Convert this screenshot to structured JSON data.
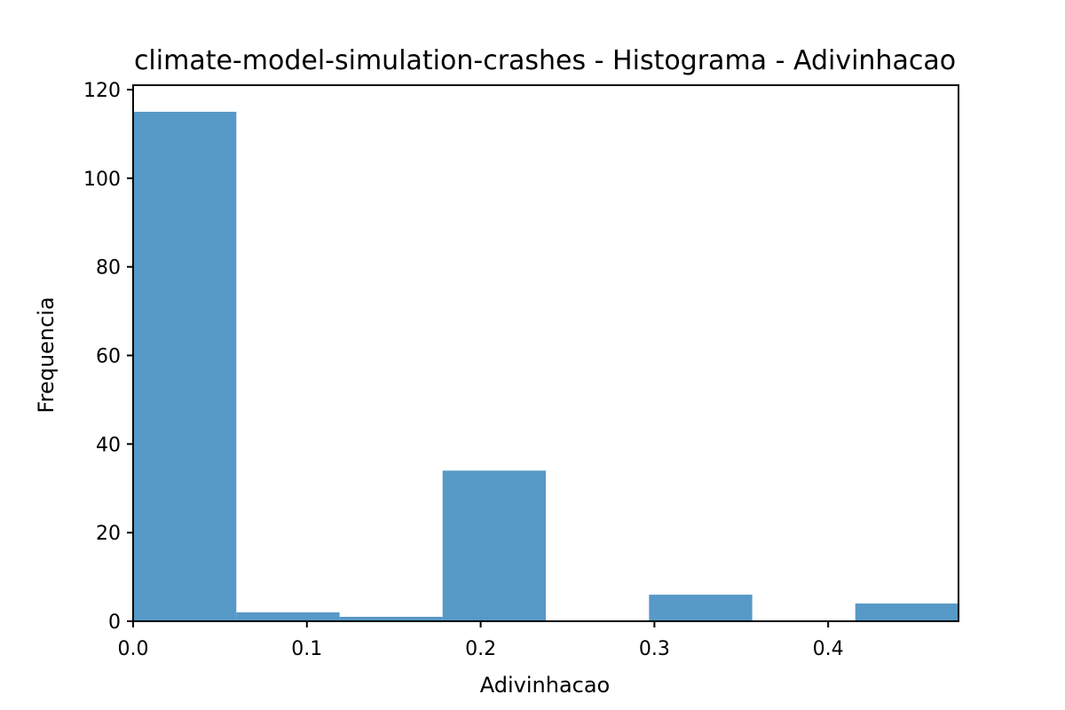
{
  "chart_data": {
    "type": "bar",
    "title": "climate-model-simulation-crashes - Histograma - Adivinhacao",
    "xlabel": "Adivinhacao",
    "ylabel": "Frequencia",
    "bar_color": "#5799c7",
    "xlim": [
      0.0,
      0.475
    ],
    "ylim": [
      0,
      121
    ],
    "x_ticks": [
      0.0,
      0.1,
      0.2,
      0.3,
      0.4
    ],
    "x_tick_labels": [
      "0.0",
      "0.1",
      "0.2",
      "0.3",
      "0.4"
    ],
    "y_ticks": [
      0,
      20,
      40,
      60,
      80,
      100,
      120
    ],
    "y_tick_labels": [
      "0",
      "20",
      "40",
      "60",
      "80",
      "100",
      "120"
    ],
    "bins": [
      {
        "x0": 0.0,
        "x1": 0.0594,
        "count": 115
      },
      {
        "x0": 0.0594,
        "x1": 0.1188,
        "count": 2
      },
      {
        "x0": 0.1188,
        "x1": 0.1781,
        "count": 1
      },
      {
        "x0": 0.1781,
        "x1": 0.2375,
        "count": 34
      },
      {
        "x0": 0.2375,
        "x1": 0.2969,
        "count": 0
      },
      {
        "x0": 0.2969,
        "x1": 0.3563,
        "count": 6
      },
      {
        "x0": 0.3563,
        "x1": 0.4156,
        "count": 0
      },
      {
        "x0": 0.4156,
        "x1": 0.475,
        "count": 4
      }
    ],
    "grid": false,
    "legend": "none"
  }
}
